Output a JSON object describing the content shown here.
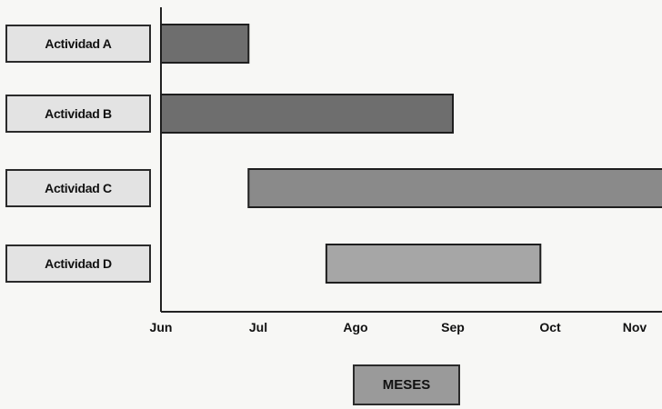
{
  "chart_data": {
    "type": "gantt",
    "title": "",
    "xlabel": "MESES",
    "ylabel": "",
    "x_ticks": [
      "Jun",
      "Jul",
      "Ago",
      "Sep",
      "Oct",
      "Nov"
    ],
    "x_unit": "months from start of Jun",
    "xlim": [
      0,
      5.2
    ],
    "tasks": [
      {
        "name": "Actividad A",
        "start": 0.0,
        "end": 0.9,
        "color": "#6e6e6e"
      },
      {
        "name": "Actividad B",
        "start": 0.0,
        "end": 3.0,
        "color": "#6e6e6e"
      },
      {
        "name": "Actividad C",
        "start": 0.9,
        "end": 5.2,
        "color": "#8a8a8a"
      },
      {
        "name": "Actividad D",
        "start": 1.7,
        "end": 3.9,
        "color": "#a6a6a6"
      }
    ],
    "grid": false,
    "legend": "none"
  }
}
